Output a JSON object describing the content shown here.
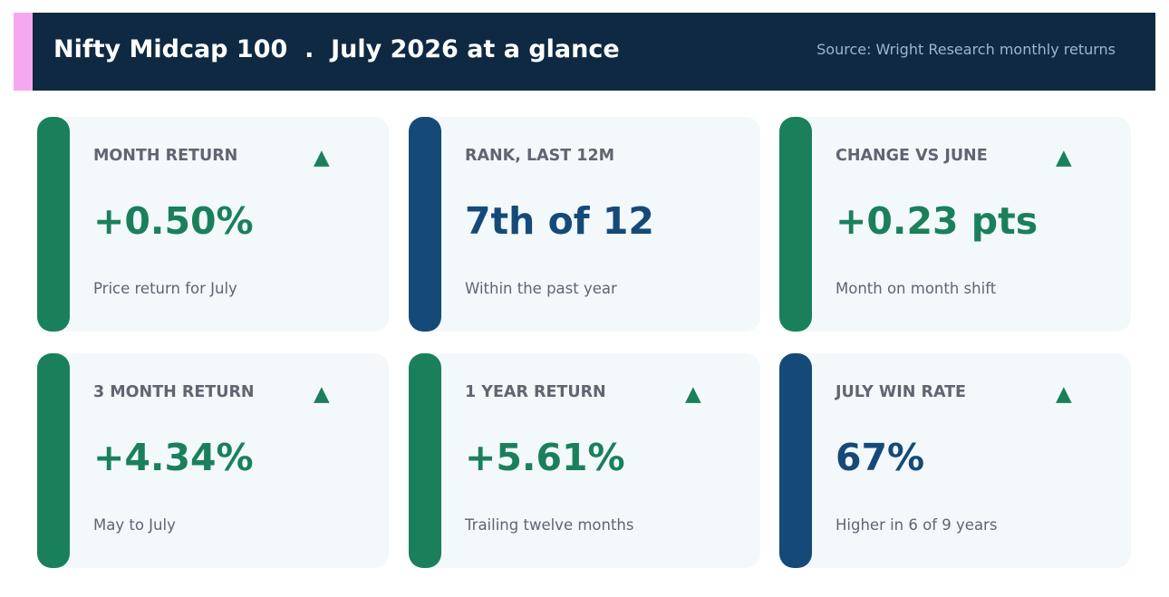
{
  "header": {
    "title": "Nifty Midcap 100  .  July 2026 at a glance",
    "source": "Source: Wright Research monthly returns",
    "accent_color": "#f5a8ef",
    "background_color": "#0f2942"
  },
  "colors": {
    "positive": "#1a805c",
    "neutral": "#154a78",
    "card_background": "#f3f8fb",
    "label_text": "#5f6671"
  },
  "cards": [
    {
      "label": "MONTH RETURN",
      "value": "+0.50%",
      "caption": "Price return for July",
      "tone": "positive",
      "arrow": "▲",
      "arrow_icon": "up-triangle-icon"
    },
    {
      "label": "RANK, LAST 12M",
      "value": "7th of 12",
      "caption": "Within the past year",
      "tone": "neutral",
      "arrow": "",
      "arrow_icon": ""
    },
    {
      "label": "CHANGE VS JUNE",
      "value": "+0.23 pts",
      "caption": "Month on month shift",
      "tone": "positive",
      "arrow": "▲",
      "arrow_icon": "up-triangle-icon"
    },
    {
      "label": "3 MONTH RETURN",
      "value": "+4.34%",
      "caption": "May to July",
      "tone": "positive",
      "arrow": "▲",
      "arrow_icon": "up-triangle-icon"
    },
    {
      "label": "1 YEAR RETURN",
      "value": "+5.61%",
      "caption": "Trailing twelve months",
      "tone": "positive",
      "arrow": "▲",
      "arrow_icon": "up-triangle-icon"
    },
    {
      "label": "JULY WIN RATE",
      "value": "67%",
      "caption": "Higher in 6 of 9 years",
      "tone": "neutral",
      "arrow": "▲",
      "arrow_icon": "up-triangle-icon"
    }
  ]
}
